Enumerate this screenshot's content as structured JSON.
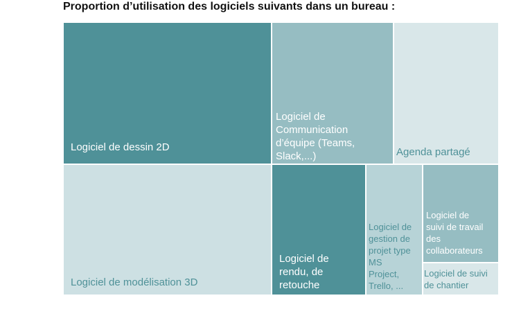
{
  "chart_data": {
    "type": "treemap",
    "title": "Proportion d’utilisation des logiciels suivants dans un bureau :",
    "tiles": [
      {
        "label": "Logiciel de dessin 2D",
        "color": "#4f9198",
        "text_color": "#ffffff"
      },
      {
        "label": "Logiciel de modélisation 3D",
        "color": "#cde0e3",
        "text_color": "#4f9198"
      },
      {
        "label": "Logiciel de\nCommunication\nd’équipe (Teams,\nSlack,...)",
        "color": "#96bdc2",
        "text_color": "#ffffff"
      },
      {
        "label": "Logiciel de\nrendu, de\nretouche",
        "color": "#4f9198",
        "text_color": "#ffffff"
      },
      {
        "label": "Agenda partagé",
        "color": "#d9e7e9",
        "text_color": "#4f9198"
      },
      {
        "label": "Logiciel de\ngestion de\nprojet type\nMS\nProject,\nTrello, ...",
        "color": "#b7d3d7",
        "text_color": "#4f9198"
      },
      {
        "label": "Logiciel de\nsuivi de travail\ndes\ncollaborateurs",
        "color": "#96bdc2",
        "text_color": "#ffffff"
      },
      {
        "label": "Logiciel de suivi\nde chantier",
        "color": "#d9e7e9",
        "text_color": "#4f9198"
      }
    ]
  }
}
